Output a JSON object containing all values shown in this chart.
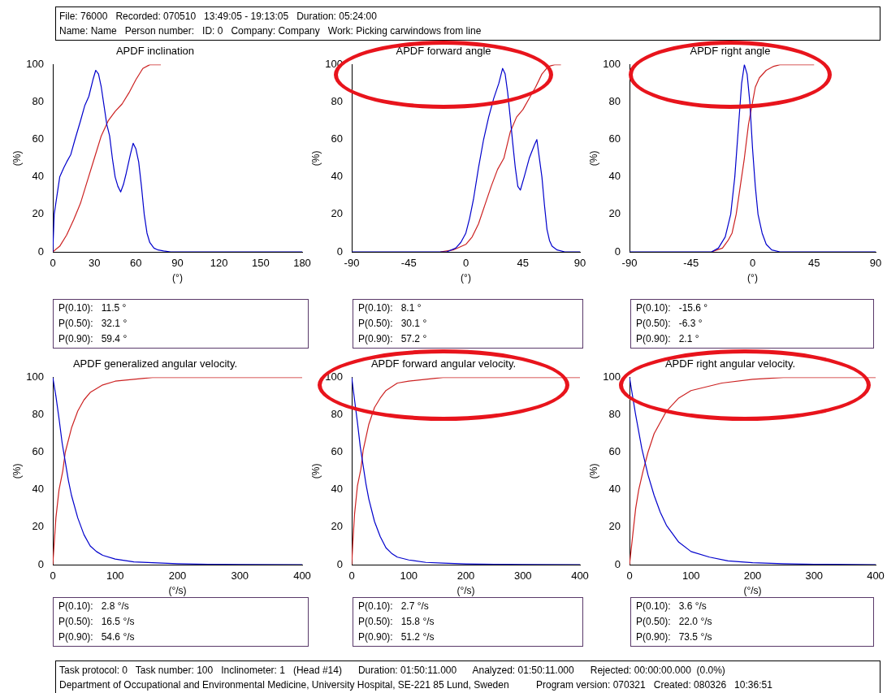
{
  "chart_data": [
    {
      "type": "other",
      "annotations": [
        "File: 76000   Recorded: 070510   13:49:05 - 19:13:05   Duration: 05:24:00",
        "Name: Name   Person number:   ID: 0   Company: Company   Work: Picking carwindows from line"
      ]
    },
    {
      "type": "line",
      "title": "APDF inclination",
      "xlabel": "(°)",
      "ylabel": "(%)",
      "xlim": [
        0,
        180
      ],
      "xticks": [
        0,
        30,
        60,
        90,
        120,
        150,
        180
      ],
      "ylim": [
        0,
        100
      ],
      "yticks": [
        0,
        20,
        40,
        60,
        80,
        100
      ],
      "annotations": [
        "P(0.10):   11.5 °",
        "P(0.50):   32.1 °",
        "P(0.90):   59.4 °"
      ],
      "series": [
        {
          "color": "#0000cc",
          "x": [
            0,
            1,
            3,
            5,
            8,
            10,
            13,
            16,
            20,
            23,
            26,
            29,
            31,
            33,
            35,
            37,
            39,
            41,
            43,
            45,
            47,
            49,
            51,
            53,
            56,
            58,
            60,
            62,
            64,
            66,
            68,
            70,
            73,
            76,
            80,
            85,
            180
          ],
          "values": [
            0,
            20,
            30,
            40,
            45,
            48,
            52,
            60,
            70,
            78,
            83,
            92,
            97,
            95,
            88,
            78,
            68,
            62,
            50,
            40,
            35,
            32,
            36,
            42,
            52,
            58,
            55,
            48,
            35,
            20,
            10,
            5,
            2,
            1,
            0.5,
            0,
            0
          ]
        },
        {
          "color": "#cc2222",
          "x": [
            0,
            5,
            10,
            15,
            20,
            25,
            30,
            35,
            40,
            45,
            50,
            55,
            60,
            65,
            70,
            78
          ],
          "values": [
            0,
            3,
            9,
            17,
            26,
            38,
            50,
            62,
            70,
            75,
            79,
            85,
            92,
            98,
            100,
            100
          ]
        }
      ]
    },
    {
      "type": "line",
      "title": "APDF forward angle",
      "xlabel": "(°)",
      "ylabel": "(%)",
      "xlim": [
        -90,
        90
      ],
      "xticks": [
        -90,
        -45,
        0,
        45,
        90
      ],
      "ylim": [
        0,
        100
      ],
      "yticks": [
        0,
        20,
        40,
        60,
        80,
        100
      ],
      "annotations": [
        "P(0.10):   8.1 °",
        "P(0.50):   30.1 °",
        "P(0.90):   57.2 °"
      ],
      "series": [
        {
          "color": "#0000cc",
          "x": [
            -90,
            -15,
            -8,
            -4,
            0,
            3,
            6,
            10,
            14,
            18,
            22,
            26,
            29,
            31,
            33,
            35,
            37,
            39,
            41,
            43,
            46,
            50,
            54,
            56,
            58,
            60,
            62,
            64,
            66,
            68,
            72,
            78,
            90
          ],
          "values": [
            0,
            0,
            2,
            5,
            10,
            18,
            28,
            45,
            60,
            72,
            82,
            90,
            98,
            95,
            85,
            72,
            58,
            45,
            35,
            33,
            40,
            50,
            57,
            60,
            50,
            40,
            25,
            12,
            6,
            3,
            1,
            0,
            0
          ]
        },
        {
          "color": "#cc2222",
          "x": [
            -20,
            -10,
            0,
            5,
            10,
            15,
            20,
            25,
            30,
            35,
            40,
            45,
            50,
            55,
            60,
            65,
            70,
            75
          ],
          "values": [
            0,
            1,
            4,
            8,
            15,
            25,
            35,
            44,
            50,
            64,
            72,
            76,
            82,
            88,
            95,
            99,
            100,
            100
          ]
        }
      ]
    },
    {
      "type": "line",
      "title": "APDF right angle",
      "xlabel": "(°)",
      "ylabel": "(%)",
      "xlim": [
        -90,
        90
      ],
      "xticks": [
        -90,
        -45,
        0,
        45,
        90
      ],
      "ylim": [
        0,
        100
      ],
      "yticks": [
        0,
        20,
        40,
        60,
        80,
        100
      ],
      "annotations": [
        "P(0.10):   -15.6 °",
        "P(0.50):   -6.3 °",
        "P(0.90):   2.1 °"
      ],
      "series": [
        {
          "color": "#0000cc",
          "x": [
            -90,
            -30,
            -25,
            -20,
            -16,
            -13,
            -10,
            -8,
            -6,
            -4,
            -2,
            0,
            2,
            4,
            7,
            10,
            14,
            20,
            90
          ],
          "values": [
            0,
            0,
            2,
            8,
            20,
            40,
            70,
            90,
            100,
            95,
            80,
            55,
            35,
            20,
            10,
            4,
            1,
            0,
            0
          ]
        },
        {
          "color": "#cc2222",
          "x": [
            -30,
            -22,
            -18,
            -15,
            -12,
            -9,
            -6,
            -3,
            0,
            2,
            5,
            10,
            15,
            20,
            45
          ],
          "values": [
            0,
            2,
            6,
            10,
            20,
            35,
            50,
            68,
            80,
            88,
            93,
            97,
            99,
            100,
            100
          ]
        }
      ]
    },
    {
      "type": "line",
      "title": "APDF generalized angular velocity.",
      "xlabel": "(°/s)",
      "ylabel": "(%)",
      "xlim": [
        0,
        400
      ],
      "xticks": [
        0,
        100,
        200,
        300,
        400
      ],
      "ylim": [
        0,
        100
      ],
      "yticks": [
        0,
        20,
        40,
        60,
        80,
        100
      ],
      "annotations": [
        "P(0.10):   2.8 °/s",
        "P(0.50):   16.5 °/s",
        "P(0.90):   54.6 °/s"
      ],
      "series": [
        {
          "color": "#0000cc",
          "x": [
            0,
            5,
            10,
            15,
            20,
            25,
            30,
            40,
            50,
            60,
            70,
            80,
            100,
            130,
            160,
            200,
            250,
            300,
            400
          ],
          "values": [
            100,
            90,
            78,
            65,
            55,
            45,
            37,
            25,
            16,
            10,
            7,
            5,
            3,
            1.5,
            1,
            0.5,
            0.2,
            0.1,
            0
          ]
        },
        {
          "color": "#cc2222",
          "x": [
            0,
            2,
            5,
            10,
            16,
            20,
            30,
            40,
            50,
            60,
            80,
            100,
            130,
            160,
            400
          ],
          "values": [
            0,
            10,
            25,
            40,
            50,
            60,
            73,
            82,
            88,
            92,
            96,
            98,
            99,
            100,
            100
          ]
        }
      ]
    },
    {
      "type": "line",
      "title": "APDF forward angular velocity.",
      "xlabel": "(°/s)",
      "ylabel": "(%)",
      "xlim": [
        0,
        400
      ],
      "xticks": [
        0,
        100,
        200,
        300,
        400
      ],
      "ylim": [
        0,
        100
      ],
      "yticks": [
        0,
        20,
        40,
        60,
        80,
        100
      ],
      "annotations": [
        "P(0.10):   2.7 °/s",
        "P(0.50):   15.8 °/s",
        "P(0.90):   51.2 °/s"
      ],
      "series": [
        {
          "color": "#0000cc",
          "x": [
            0,
            5,
            10,
            15,
            20,
            25,
            30,
            40,
            50,
            60,
            70,
            80,
            100,
            130,
            160,
            200,
            250,
            300,
            400
          ],
          "values": [
            100,
            88,
            76,
            63,
            53,
            43,
            35,
            23,
            15,
            9,
            6,
            4,
            2.5,
            1.2,
            0.8,
            0.4,
            0.2,
            0.1,
            0
          ]
        },
        {
          "color": "#cc2222",
          "x": [
            0,
            2,
            5,
            10,
            16,
            20,
            30,
            40,
            50,
            60,
            80,
            100,
            130,
            160,
            400
          ],
          "values": [
            0,
            12,
            27,
            42,
            51,
            61,
            75,
            84,
            89,
            93,
            97,
            98,
            99,
            100,
            100
          ]
        }
      ]
    },
    {
      "type": "line",
      "title": "APDF right angular velocity.",
      "xlabel": "(°/s)",
      "ylabel": "(%)",
      "xlim": [
        0,
        400
      ],
      "xticks": [
        0,
        100,
        200,
        300,
        400
      ],
      "ylim": [
        0,
        100
      ],
      "yticks": [
        0,
        20,
        40,
        60,
        80,
        100
      ],
      "annotations": [
        "P(0.10):   3.6 °/s",
        "P(0.50):   22.0 °/s",
        "P(0.90):   73.5 °/s"
      ],
      "series": [
        {
          "color": "#0000cc",
          "x": [
            0,
            10,
            20,
            30,
            40,
            50,
            60,
            80,
            100,
            130,
            160,
            200,
            250,
            300,
            400
          ],
          "values": [
            100,
            80,
            62,
            48,
            37,
            28,
            21,
            12,
            7,
            4,
            2,
            1,
            0.5,
            0.2,
            0
          ]
        },
        {
          "color": "#cc2222",
          "x": [
            0,
            5,
            10,
            15,
            22,
            30,
            40,
            60,
            80,
            100,
            150,
            200,
            250,
            400
          ],
          "values": [
            0,
            15,
            30,
            40,
            50,
            60,
            70,
            82,
            89,
            93,
            97,
            99,
            100,
            100
          ]
        }
      ]
    },
    {
      "type": "other",
      "annotations": [
        "Task protocol: 0   Task number: 100   Inclinometer: 1   (Head #14)      Duration: 01:50:11.000      Analyzed: 01:50:11.000      Rejected: 00:00:00.000  (0.0%)",
        "Department of Occupational and Environmental Medicine, University Hospital, SE-221 85 Lund, Sweden          Program version: 070321   Created: 080326   10:36:51"
      ]
    }
  ]
}
